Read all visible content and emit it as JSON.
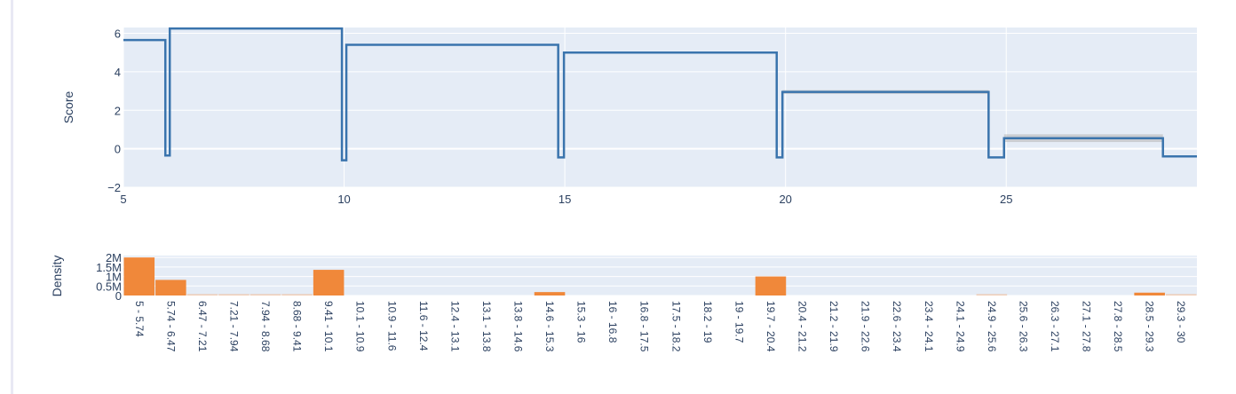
{
  "chart_data": [
    {
      "type": "line",
      "line_shape": "step",
      "title": "",
      "xlabel": "",
      "ylabel": "Score",
      "xlim": [
        5,
        29.32
      ],
      "ylim": [
        -2,
        6.3
      ],
      "x_ticks": [
        "5",
        "10",
        "15",
        "20",
        "25"
      ],
      "y_ticks": [
        "−2",
        "0",
        "2",
        "4",
        "6"
      ],
      "grid": true,
      "line_color": "#3a74ad",
      "band_color": "#b4b4b4",
      "series": [
        {
          "name": "score",
          "segments": [
            {
              "x0": 5.0,
              "x1": 5.95,
              "y": 5.65
            },
            {
              "x0": 5.95,
              "x1": 6.05,
              "y": -0.35
            },
            {
              "x0": 6.05,
              "x1": 9.95,
              "y": 6.25
            },
            {
              "x0": 9.95,
              "x1": 10.05,
              "y": -0.6
            },
            {
              "x0": 10.05,
              "x1": 14.85,
              "y": 5.4
            },
            {
              "x0": 14.85,
              "x1": 14.98,
              "y": -0.45
            },
            {
              "x0": 14.98,
              "x1": 19.8,
              "y": 5.0
            },
            {
              "x0": 19.8,
              "x1": 19.93,
              "y": -0.45
            },
            {
              "x0": 19.93,
              "x1": 24.6,
              "y": 2.95
            },
            {
              "x0": 24.6,
              "x1": 24.95,
              "y": -0.45
            },
            {
              "x0": 24.95,
              "x1": 28.55,
              "y": 0.55
            },
            {
              "x0": 28.55,
              "x1": 29.32,
              "y": -0.4
            }
          ],
          "confidence_bands": [
            {
              "x0": 19.93,
              "x1": 24.6,
              "y_low": 2.85,
              "y_high": 3.05
            },
            {
              "x0": 24.95,
              "x1": 28.55,
              "y_low": 0.35,
              "y_high": 0.75
            }
          ]
        }
      ]
    },
    {
      "type": "bar",
      "title": "",
      "xlabel": "",
      "ylabel": "Density",
      "ylim": [
        0,
        2.1
      ],
      "y_ticks": [
        "0",
        "0.5M",
        "1M",
        "1.5M",
        "2M"
      ],
      "y_tick_values": [
        0,
        0.5,
        1,
        1.5,
        2
      ],
      "bar_color": "#f0883a",
      "grid": true,
      "categories": [
        "5 - 5.74",
        "5.74 - 6.47",
        "6.47 - 7.21",
        "7.21 - 7.94",
        "7.94 - 8.68",
        "8.68 - 9.41",
        "9.41 - 10.1",
        "10.1 - 10.9",
        "10.9 - 11.6",
        "11.6 - 12.4",
        "12.4 - 13.1",
        "13.1 - 13.8",
        "13.8 - 14.6",
        "14.6 - 15.3",
        "15.3 - 16",
        "16 - 16.8",
        "16.8 - 17.5",
        "17.5 - 18.2",
        "18.2 - 19",
        "19 - 19.7",
        "19.7 - 20.4",
        "20.4 - 21.2",
        "21.2 - 21.9",
        "21.9 - 22.6",
        "22.6 - 23.4",
        "23.4 - 24.1",
        "24.1 - 24.9",
        "24.9 - 25.6",
        "25.6 - 26.3",
        "26.3 - 27.1",
        "27.1 - 27.8",
        "27.8 - 28.5",
        "28.5 - 29.3",
        "29.3 - 30"
      ],
      "values": [
        2.0,
        0.82,
        0.02,
        0.02,
        0.02,
        0.02,
        1.35,
        0.0,
        0.0,
        0.0,
        0.0,
        0.0,
        0.0,
        0.18,
        0.0,
        0.0,
        0.0,
        0.0,
        0.0,
        0.0,
        1.0,
        0.0,
        0.0,
        0.0,
        0.0,
        0.0,
        0.0,
        0.03,
        0.0,
        0.0,
        0.0,
        0.0,
        0.15,
        0.03
      ],
      "value_unit": "M"
    }
  ]
}
